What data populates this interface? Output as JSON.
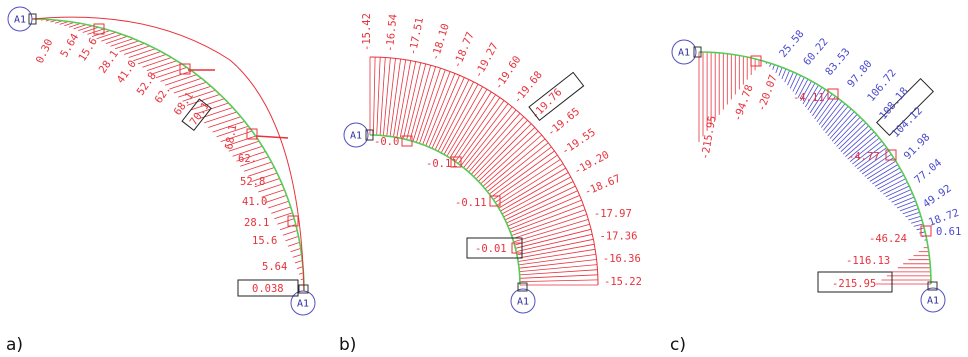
{
  "colors": {
    "negative": "#e8323c",
    "positive": "#4a4ad0",
    "axis": "#55cc55",
    "node": "#5050c0",
    "box": "#222222"
  },
  "node_label": "A1",
  "panels": [
    {
      "label": "a)",
      "top_values": [
        "0.30",
        "5.64",
        "15.6",
        "28.1",
        "41.0",
        "52.8",
        "62.",
        "68.1",
        "70.1"
      ],
      "bottom_values": [
        "68.1",
        "62.",
        "52.8",
        "41.0",
        "28.1",
        "15.6",
        "5.64",
        "0.038"
      ],
      "boxed_values": [
        "70.1",
        "0.038"
      ]
    },
    {
      "label": "b)",
      "outer_values": [
        "-15.42",
        "-16.54",
        "-17.51",
        "-18.10",
        "-18.77",
        "-19.27",
        "-19.60",
        "-19.68",
        "-19.76",
        "-19.65",
        "-19.55",
        "-19.20",
        "-18.67",
        "-17.97",
        "-17.36",
        "-16.36",
        "-15.22"
      ],
      "inner_values": [
        "-0.0",
        "-0.11",
        "-0.11",
        "-0.01"
      ],
      "boxed_values": [
        "-19.76",
        "-0.01"
      ]
    },
    {
      "label": "c)",
      "top_values": [
        "-215.95",
        "-94.78",
        "-20.07",
        "25.58",
        "60.22",
        "83.53",
        "97.80",
        "106.72",
        "108.18"
      ],
      "right_values": [
        "104.12",
        "91.98",
        "77.04",
        "49.92",
        "18.72",
        "0.61"
      ],
      "inner_values": [
        "-4.11",
        "-4.77",
        "-46.24",
        "-116.13",
        "-215.95"
      ],
      "boxed_values": [
        "108.18",
        "-215.95"
      ]
    }
  ]
}
